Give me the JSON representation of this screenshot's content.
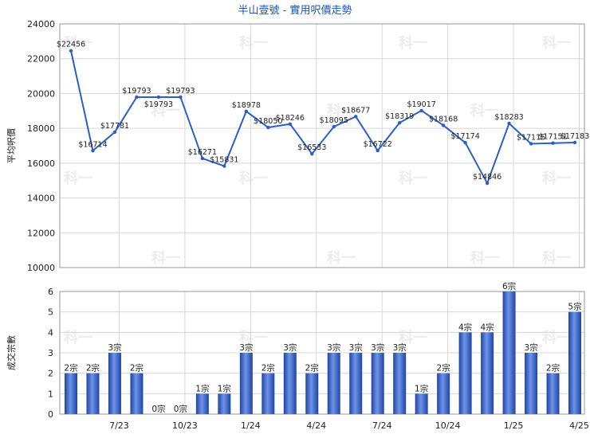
{
  "chart_data": [
    {
      "type": "line",
      "title": "半山壹號 - 實用呎價走勢",
      "ylabel": "平均呎價",
      "ylim": [
        10000,
        24000
      ],
      "yticks": [
        10000,
        12000,
        14000,
        16000,
        18000,
        20000,
        22000,
        24000
      ],
      "grid": true,
      "line_color": "#2a5fc8",
      "x_labels": [
        "7/23",
        "10/23",
        "1/24",
        "4/24",
        "7/24",
        "10/24",
        "1/25",
        "4/25"
      ],
      "x_label_positions": [
        2.2,
        5.2,
        8.2,
        11.2,
        14.2,
        17.2,
        20.2,
        23.2
      ],
      "values": [
        22456,
        16714,
        17781,
        19793,
        19793,
        19793,
        16271,
        15831,
        18978,
        18050,
        18246,
        16533,
        18095,
        18677,
        16722,
        18319,
        19017,
        18168,
        17174,
        14846,
        18283,
        17115,
        17151,
        17183
      ],
      "labels": [
        "$22456",
        "$16714",
        "$17781",
        "$19793",
        "$19793",
        "$19793",
        "$16271",
        "$15831",
        "$18978",
        "$18050",
        "$18246",
        "$16533",
        "$18095",
        "$18677",
        "$16722",
        "$18319",
        "$19017",
        "$18168",
        "$17174",
        "$14846",
        "$18283",
        "$17115",
        "$17151",
        "$17183"
      ]
    },
    {
      "type": "bar",
      "ylabel": "成交宗數",
      "ylim": [
        0,
        6
      ],
      "yticks": [
        0,
        1,
        2,
        3,
        4,
        5,
        6
      ],
      "grid": true,
      "bar_color": "#3d68c8",
      "values": [
        2,
        2,
        3,
        2,
        0,
        0,
        1,
        1,
        3,
        2,
        3,
        2,
        3,
        3,
        3,
        3,
        1,
        2,
        4,
        4,
        6,
        3,
        2,
        5
      ],
      "labels": [
        "2宗",
        "2宗",
        "3宗",
        "2宗",
        "0宗",
        "0宗",
        "1宗",
        "1宗",
        "3宗",
        "2宗",
        "3宗",
        "2宗",
        "3宗",
        "3宗",
        "3宗",
        "3宗",
        "1宗",
        "2宗",
        "4宗",
        "4宗",
        "6宗",
        "3宗",
        "2宗",
        "5宗"
      ]
    }
  ],
  "watermark": "科一"
}
